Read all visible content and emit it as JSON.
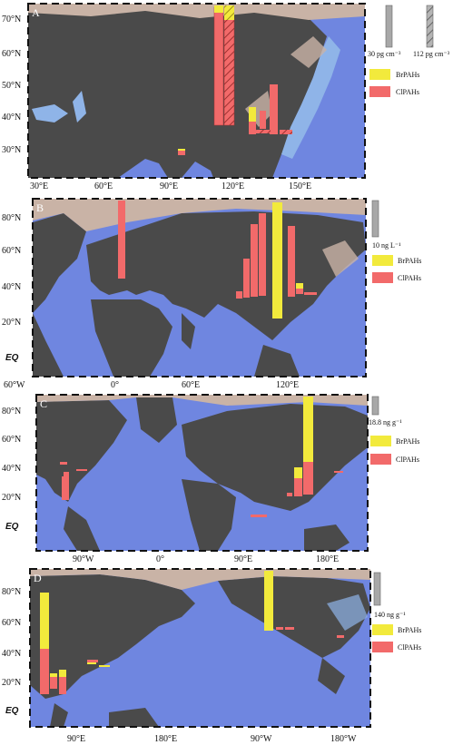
{
  "colors": {
    "land": "#4a4a4a",
    "ocean": "#6f86e0",
    "shelf": "#8fb4e8",
    "coast": "#c9b3a6",
    "brpah": "#f2ea3c",
    "clpah": "#f26a6a",
    "scale": "#9a9a9a"
  },
  "panels": [
    {
      "id": "A",
      "label": "A",
      "lat_ticks": [
        "70°N",
        "60°N",
        "50°N",
        "40°N",
        "30°N"
      ],
      "lon_ticks": [
        "30°E",
        "60°E",
        "90°E",
        "120°E",
        "150°E"
      ],
      "scales": [
        "30 pg cm⁻³",
        "112 pg cm⁻³"
      ],
      "legend": [
        "BrPAHs",
        "ClPAHs"
      ]
    },
    {
      "id": "B",
      "label": "B",
      "lat_ticks": [
        "80°N",
        "60°N",
        "40°N",
        "20°N",
        "EQ"
      ],
      "lon_ticks": [
        "60°W",
        "0°",
        "60°E",
        "120°E"
      ],
      "scales": [
        "10 ng L⁻¹"
      ],
      "legend": [
        "BrPAHs",
        "ClPAHs"
      ]
    },
    {
      "id": "C",
      "label": "C",
      "lat_ticks": [
        "80°N",
        "60°N",
        "40°N",
        "20°N",
        "EQ"
      ],
      "lon_ticks": [
        "90°W",
        "0°",
        "90°E",
        "180°E"
      ],
      "scales": [
        "18.8 ng g⁻¹"
      ],
      "legend": [
        "BrPAHs",
        "ClPAHs"
      ]
    },
    {
      "id": "D",
      "label": "D",
      "lat_ticks": [
        "80°N",
        "60°N",
        "40°N",
        "20°N",
        "EQ"
      ],
      "lon_ticks": [
        "90°E",
        "180°E",
        "90°W",
        "180°W"
      ],
      "scales": [
        "140 ng g⁻¹"
      ],
      "legend": [
        "BrPAHs",
        "ClPAHs"
      ]
    }
  ]
}
